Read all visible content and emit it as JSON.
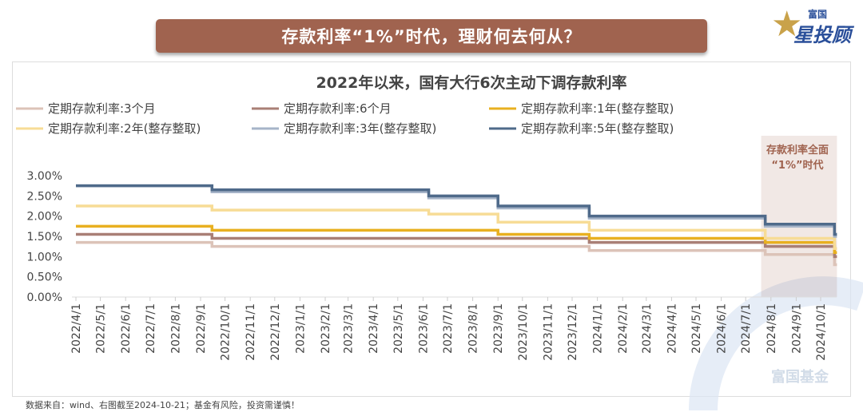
{
  "banner_title": "存款利率“1%”时代，理财何去何从？",
  "logo": {
    "small": "富国",
    "big": "星投顾"
  },
  "footer": "数据来自：wind、右图截至2024-10-21；基金有风险，投资需谨慎！",
  "watermark": "富国基金",
  "chart_data": {
    "type": "line",
    "step": true,
    "title": "2022年以来，国有大行6次主动下调存款利率",
    "xlabel": "",
    "ylabel": "",
    "ylim": [
      0,
      3
    ],
    "yticks": [
      "0.00%",
      "0.50%",
      "1.00%",
      "1.50%",
      "2.00%",
      "2.50%",
      "3.00%"
    ],
    "xticks": [
      "2022/4/1",
      "2022/5/1",
      "2022/6/1",
      "2022/7/1",
      "2022/8/1",
      "2022/9/1",
      "2022/10/1",
      "2022/11/1",
      "2022/12/1",
      "2023/1/1",
      "2023/2/1",
      "2023/3/1",
      "2023/4/1",
      "2023/5/1",
      "2023/6/1",
      "2023/7/1",
      "2023/8/1",
      "2023/9/1",
      "2023/10/1",
      "2023/11/1",
      "2023/12/1",
      "2024/1/1",
      "2024/2/1",
      "2024/3/1",
      "2024/4/1",
      "2024/5/1",
      "2024/6/1",
      "2024/7/1",
      "2024/8/1",
      "2024/9/1",
      "2024/10/1"
    ],
    "x": [
      "2022-04-01",
      "2022-09-15",
      "2023-06-08",
      "2023-09-01",
      "2023-12-22",
      "2024-07-25",
      "2024-10-18",
      "2024-10-21"
    ],
    "legend_position": "top",
    "series": [
      {
        "name": "定期存款利率:3个月",
        "color": "#dcc3b8",
        "values": [
          1.35,
          1.25,
          1.25,
          1.25,
          1.15,
          1.05,
          0.8,
          0.8
        ]
      },
      {
        "name": "定期存款利率:6个月",
        "color": "#a97f76",
        "values": [
          1.55,
          1.45,
          1.45,
          1.45,
          1.35,
          1.25,
          1.0,
          1.0
        ]
      },
      {
        "name": "定期存款利率:1年(整存整取)",
        "color": "#e8b020",
        "values": [
          1.75,
          1.65,
          1.65,
          1.55,
          1.45,
          1.35,
          1.1,
          1.1
        ]
      },
      {
        "name": "定期存款利率:2年(整存整取)",
        "color": "#f7dc96",
        "values": [
          2.25,
          2.15,
          2.05,
          1.85,
          1.65,
          1.45,
          1.2,
          1.2
        ]
      },
      {
        "name": "定期存款利率:3年(整存整取)",
        "color": "#a6b4c8",
        "values": [
          2.75,
          2.6,
          2.45,
          2.2,
          1.95,
          1.75,
          1.5,
          1.5
        ]
      },
      {
        "name": "定期存款利率:5年(整存整取)",
        "color": "#4f6a8a",
        "values": [
          2.75,
          2.65,
          2.5,
          2.25,
          2.0,
          1.8,
          1.55,
          1.55
        ]
      }
    ],
    "annotation": {
      "line1": "存款利率全面",
      "line2": "“1%”时代",
      "start": "2024-07-20",
      "end": "2024-10-21",
      "color": "#a0634f"
    }
  }
}
